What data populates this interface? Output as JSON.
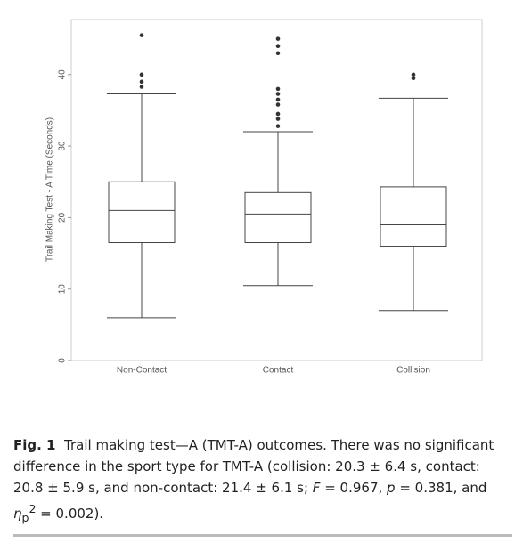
{
  "chart_data": {
    "type": "box",
    "y_label": "Trail Making Test - A Time (Seconds)",
    "categories": [
      "Non-Contact",
      "Contact",
      "Collision"
    ],
    "min": [
      6,
      10.5,
      7
    ],
    "q1": [
      16.5,
      16.5,
      16
    ],
    "median": [
      21,
      20.5,
      19
    ],
    "q3": [
      25,
      23.5,
      24.3
    ],
    "max": [
      37.3,
      32,
      36.7
    ],
    "outliers": [
      [
        45.5,
        40,
        39,
        38.3
      ],
      [
        45,
        44,
        43,
        38,
        37.3,
        36.5,
        35.8,
        34.5,
        33.8,
        32.8
      ],
      [
        40,
        39.5
      ]
    ],
    "ylim": [
      0,
      47.7
    ],
    "yticks": [
      0,
      10,
      20,
      30,
      40
    ],
    "color": "#333333"
  },
  "caption": {
    "label": "Fig. 1",
    "parts": [
      "Trail making test—A (TMT-A) outcomes. There was no significant difference in the sport type for TMT-A (collision: 20.3 ± 6.4 s, contact: 20.8 ± 5.9 s, and non-contact: 21.4 ± 6.1 s; ",
      "F",
      " = 0.967, ",
      "p",
      " = 0.381, and ",
      "η",
      "p",
      "2",
      " = 0.002)."
    ]
  }
}
